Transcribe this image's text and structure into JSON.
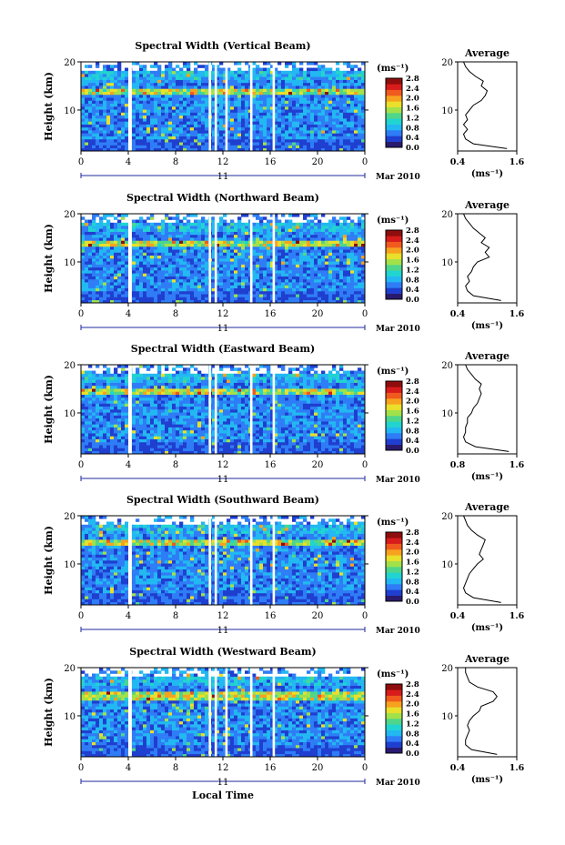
{
  "colors": {
    "colormap": [
      "#2a1a6e",
      "#1f3fd0",
      "#2f7df6",
      "#22b8f2",
      "#21d4d0",
      "#4fd68a",
      "#a2e14a",
      "#eadf2a",
      "#f7a21f",
      "#f05a1e",
      "#d81c1c",
      "#8f0d0d"
    ],
    "axis": "#000000",
    "average_line": "#000000",
    "gap": "#ffffff"
  },
  "footer": {
    "xlabel": "Local Time"
  },
  "chart_data": [
    {
      "type": "heatmap",
      "title": "Spectral Width (Vertical Beam)",
      "ylabel": "Height (km)",
      "x_ticks": [
        "0",
        "4",
        "8",
        "12",
        "16",
        "20",
        "0"
      ],
      "xlim": [
        0,
        24
      ],
      "y_ticks": [
        "20",
        "10"
      ],
      "ylim": [
        1.5,
        20
      ],
      "date_day": "11",
      "date_label": "Mar 2010",
      "colorbar": {
        "unit": "(ms⁻¹)",
        "ticks": [
          "2.8",
          "2.4",
          "2.0",
          "1.6",
          "1.2",
          "0.8",
          "0.4",
          "0.0"
        ],
        "range": [
          0,
          2.8
        ]
      },
      "data_gaps_hours": [
        [
          4.0,
          4.3
        ],
        [
          10.8,
          11.0
        ],
        [
          11.3,
          11.5
        ],
        [
          12.2,
          12.4
        ],
        [
          14.3,
          14.5
        ],
        [
          16.2,
          16.4
        ]
      ],
      "high_layer_km": [
        13.5,
        14.5
      ],
      "average_panel": {
        "title": "Average",
        "xlabel": "(ms⁻¹)",
        "x_ticks": [
          "0.4",
          "1.6"
        ],
        "xlim": [
          0.3,
          1.8
        ],
        "y_ticks": [
          "20",
          "10"
        ],
        "height_km": [
          2,
          3,
          4,
          5,
          6,
          7,
          8,
          9,
          10,
          11,
          12,
          13,
          14,
          15,
          16,
          17,
          18,
          19,
          20
        ],
        "width_ms": [
          1.55,
          0.7,
          0.5,
          0.45,
          0.55,
          0.45,
          0.55,
          0.5,
          0.6,
          0.7,
          0.9,
          1.0,
          1.05,
          0.9,
          0.95,
          0.75,
          0.6,
          0.5,
          0.45
        ]
      }
    },
    {
      "type": "heatmap",
      "title": "Spectral Width (Northward Beam)",
      "ylabel": "Height (km)",
      "x_ticks": [
        "0",
        "4",
        "8",
        "12",
        "16",
        "20",
        "0"
      ],
      "xlim": [
        0,
        24
      ],
      "y_ticks": [
        "20",
        "10"
      ],
      "ylim": [
        1.5,
        20
      ],
      "date_day": "11",
      "date_label": "Mar 2010",
      "colorbar": {
        "unit": "(ms⁻¹)",
        "ticks": [
          "2.8",
          "2.4",
          "2.0",
          "1.6",
          "1.2",
          "0.8",
          "0.4",
          "0.0"
        ],
        "range": [
          0,
          2.8
        ]
      },
      "data_gaps_hours": [
        [
          4.0,
          4.3
        ],
        [
          10.8,
          11.0
        ],
        [
          11.3,
          11.5
        ],
        [
          14.3,
          14.5
        ],
        [
          16.2,
          16.4
        ]
      ],
      "high_layer_km": [
        13.0,
        14.5
      ],
      "average_panel": {
        "title": "Average",
        "xlabel": "(ms⁻¹)",
        "x_ticks": [
          "0.4",
          "1.6"
        ],
        "xlim": [
          0.3,
          1.8
        ],
        "y_ticks": [
          "20",
          "10"
        ],
        "height_km": [
          2,
          3,
          4,
          5,
          6,
          7,
          8,
          9,
          10,
          11,
          12,
          13,
          14,
          15,
          16,
          17,
          18,
          19,
          20
        ],
        "width_ms": [
          1.4,
          0.7,
          0.55,
          0.5,
          0.6,
          0.55,
          0.65,
          0.7,
          0.8,
          1.1,
          1.0,
          1.1,
          0.9,
          1.0,
          0.85,
          0.7,
          0.6,
          0.5,
          0.45
        ]
      }
    },
    {
      "type": "heatmap",
      "title": "Spectral Width (Eastward Beam)",
      "ylabel": "Height (km)",
      "x_ticks": [
        "0",
        "4",
        "8",
        "12",
        "16",
        "20",
        "0"
      ],
      "xlim": [
        0,
        24
      ],
      "y_ticks": [
        "20",
        "10"
      ],
      "ylim": [
        1.5,
        20
      ],
      "date_day": "11",
      "date_label": "Mar 2010",
      "colorbar": {
        "unit": "(ms⁻¹)",
        "ticks": [
          "2.8",
          "2.4",
          "2.0",
          "1.6",
          "1.2",
          "0.8",
          "0.4",
          "0.0"
        ],
        "range": [
          0,
          2.8
        ]
      },
      "data_gaps_hours": [
        [
          4.0,
          4.3
        ],
        [
          10.8,
          11.0
        ],
        [
          11.3,
          11.5
        ],
        [
          14.3,
          14.5
        ],
        [
          16.2,
          16.4
        ]
      ],
      "high_layer_km": [
        14.0,
        15.0
      ],
      "average_panel": {
        "title": "Average",
        "xlabel": "(ms⁻¹)",
        "x_ticks": [
          "0.8",
          "1.6"
        ],
        "xlim": [
          0.3,
          1.8
        ],
        "y_ticks": [
          "20",
          "10"
        ],
        "height_km": [
          2,
          3,
          4,
          5,
          6,
          7,
          8,
          9,
          10,
          11,
          12,
          13,
          14,
          15,
          16,
          17,
          18,
          19,
          20
        ],
        "width_ms": [
          1.6,
          0.75,
          0.5,
          0.45,
          0.5,
          0.5,
          0.55,
          0.55,
          0.65,
          0.7,
          0.8,
          0.85,
          0.9,
          0.85,
          0.9,
          0.75,
          0.65,
          0.55,
          0.5
        ]
      }
    },
    {
      "type": "heatmap",
      "title": "Spectral Width (Southward Beam)",
      "ylabel": "Height (km)",
      "x_ticks": [
        "0",
        "4",
        "8",
        "12",
        "16",
        "20",
        "0"
      ],
      "xlim": [
        0,
        24
      ],
      "y_ticks": [
        "20",
        "10"
      ],
      "ylim": [
        1.5,
        20
      ],
      "date_day": "11",
      "date_label": "Mar 2010",
      "colorbar": {
        "unit": "(ms⁻¹)",
        "ticks": [
          "2.8",
          "2.4",
          "2.0",
          "1.6",
          "1.2",
          "0.8",
          "0.4",
          "0.0"
        ],
        "range": [
          0,
          2.8
        ]
      },
      "data_gaps_hours": [
        [
          4.0,
          4.3
        ],
        [
          10.8,
          11.0
        ],
        [
          11.3,
          11.5
        ],
        [
          14.3,
          14.5
        ],
        [
          16.2,
          16.4
        ]
      ],
      "high_layer_km": [
        14.0,
        15.0
      ],
      "average_panel": {
        "title": "Average",
        "xlabel": "(ms⁻¹)",
        "x_ticks": [
          "0.4",
          "1.6"
        ],
        "xlim": [
          0.3,
          1.8
        ],
        "y_ticks": [
          "20",
          "10"
        ],
        "height_km": [
          2,
          3,
          4,
          5,
          6,
          7,
          8,
          9,
          10,
          11,
          12,
          13,
          14,
          15,
          16,
          17,
          18,
          19,
          20
        ],
        "width_ms": [
          1.4,
          0.7,
          0.5,
          0.45,
          0.5,
          0.55,
          0.6,
          0.7,
          0.8,
          0.95,
          0.85,
          0.9,
          0.95,
          1.0,
          0.8,
          0.65,
          0.55,
          0.5,
          0.45
        ]
      }
    },
    {
      "type": "heatmap",
      "title": "Spectral Width (Westward Beam)",
      "ylabel": "Height (km)",
      "x_ticks": [
        "0",
        "4",
        "8",
        "12",
        "16",
        "20",
        "0"
      ],
      "xlim": [
        0,
        24
      ],
      "y_ticks": [
        "20",
        "10"
      ],
      "ylim": [
        1.5,
        20
      ],
      "date_day": "11",
      "date_label": "Mar 2010",
      "colorbar": {
        "unit": "(ms⁻¹)",
        "ticks": [
          "2.8",
          "2.4",
          "2.0",
          "1.6",
          "1.2",
          "0.8",
          "0.4",
          "0.0"
        ],
        "range": [
          0,
          2.8
        ]
      },
      "data_gaps_hours": [
        [
          4.0,
          4.3
        ],
        [
          10.8,
          11.0
        ],
        [
          11.3,
          11.5
        ],
        [
          12.2,
          12.4
        ],
        [
          14.3,
          14.5
        ],
        [
          16.2,
          16.4
        ]
      ],
      "high_layer_km": [
        13.0,
        15.0
      ],
      "average_panel": {
        "title": "Average",
        "xlabel": "(ms⁻¹)",
        "x_ticks": [
          "0.4",
          "1.6"
        ],
        "xlim": [
          0.3,
          1.8
        ],
        "y_ticks": [
          "20",
          "10"
        ],
        "height_km": [
          2,
          3,
          4,
          5,
          6,
          7,
          8,
          9,
          10,
          11,
          12,
          13,
          14,
          15,
          16,
          17,
          18,
          19,
          20
        ],
        "width_ms": [
          1.3,
          0.65,
          0.5,
          0.5,
          0.55,
          0.6,
          0.55,
          0.6,
          0.7,
          0.85,
          0.9,
          1.2,
          1.3,
          1.2,
          0.8,
          0.6,
          0.55,
          0.5,
          0.5
        ]
      }
    }
  ]
}
